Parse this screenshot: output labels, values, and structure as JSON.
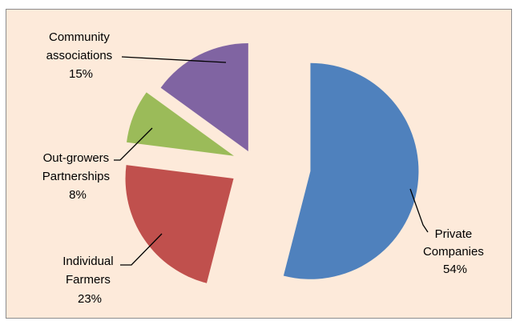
{
  "chart_data": {
    "type": "pie",
    "exploded": true,
    "slices": [
      {
        "label_lines": [
          "Private",
          "Companies"
        ],
        "value": 54,
        "value_label": "54%",
        "color": "#4f81bd"
      },
      {
        "label_lines": [
          "Individual",
          "Farmers"
        ],
        "value": 23,
        "value_label": "23%",
        "color": "#c0504d"
      },
      {
        "label_lines": [
          "Out-growers",
          "Partnerships"
        ],
        "value": 8,
        "value_label": "8%",
        "color": "#9bbb59"
      },
      {
        "label_lines": [
          "Community",
          "associations"
        ],
        "value": 15,
        "value_label": "15%",
        "color": "#8064a2"
      }
    ],
    "background": "#fdeada",
    "legend": "none"
  }
}
